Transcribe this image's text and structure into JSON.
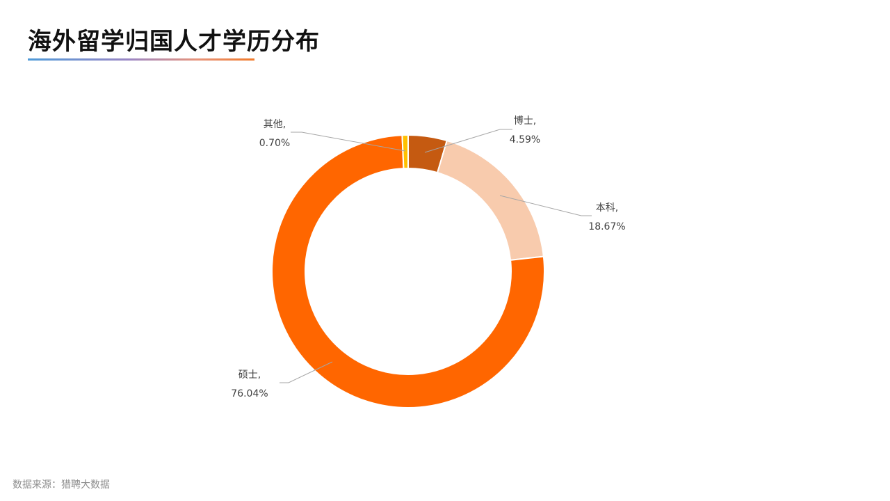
{
  "page": {
    "title": "海外留学归国人才学历分布",
    "source": "数据来源：猎聘大数据"
  },
  "chart_data": {
    "type": "pie",
    "style": "donut",
    "categories": [
      "博士",
      "本科",
      "硕士",
      "其他"
    ],
    "values": [
      4.59,
      18.67,
      76.04,
      0.7
    ],
    "unit": "%",
    "colors": [
      "#c55a11",
      "#f8cbad",
      "#ff6600",
      "#ffc000"
    ],
    "labels": [
      {
        "name": "博士,",
        "value": "4.59%"
      },
      {
        "name": "本科,",
        "value": "18.67%"
      },
      {
        "name": "硕士,",
        "value": "76.04%"
      },
      {
        "name": "其他,",
        "value": "0.70%"
      }
    ],
    "legend": "none"
  }
}
